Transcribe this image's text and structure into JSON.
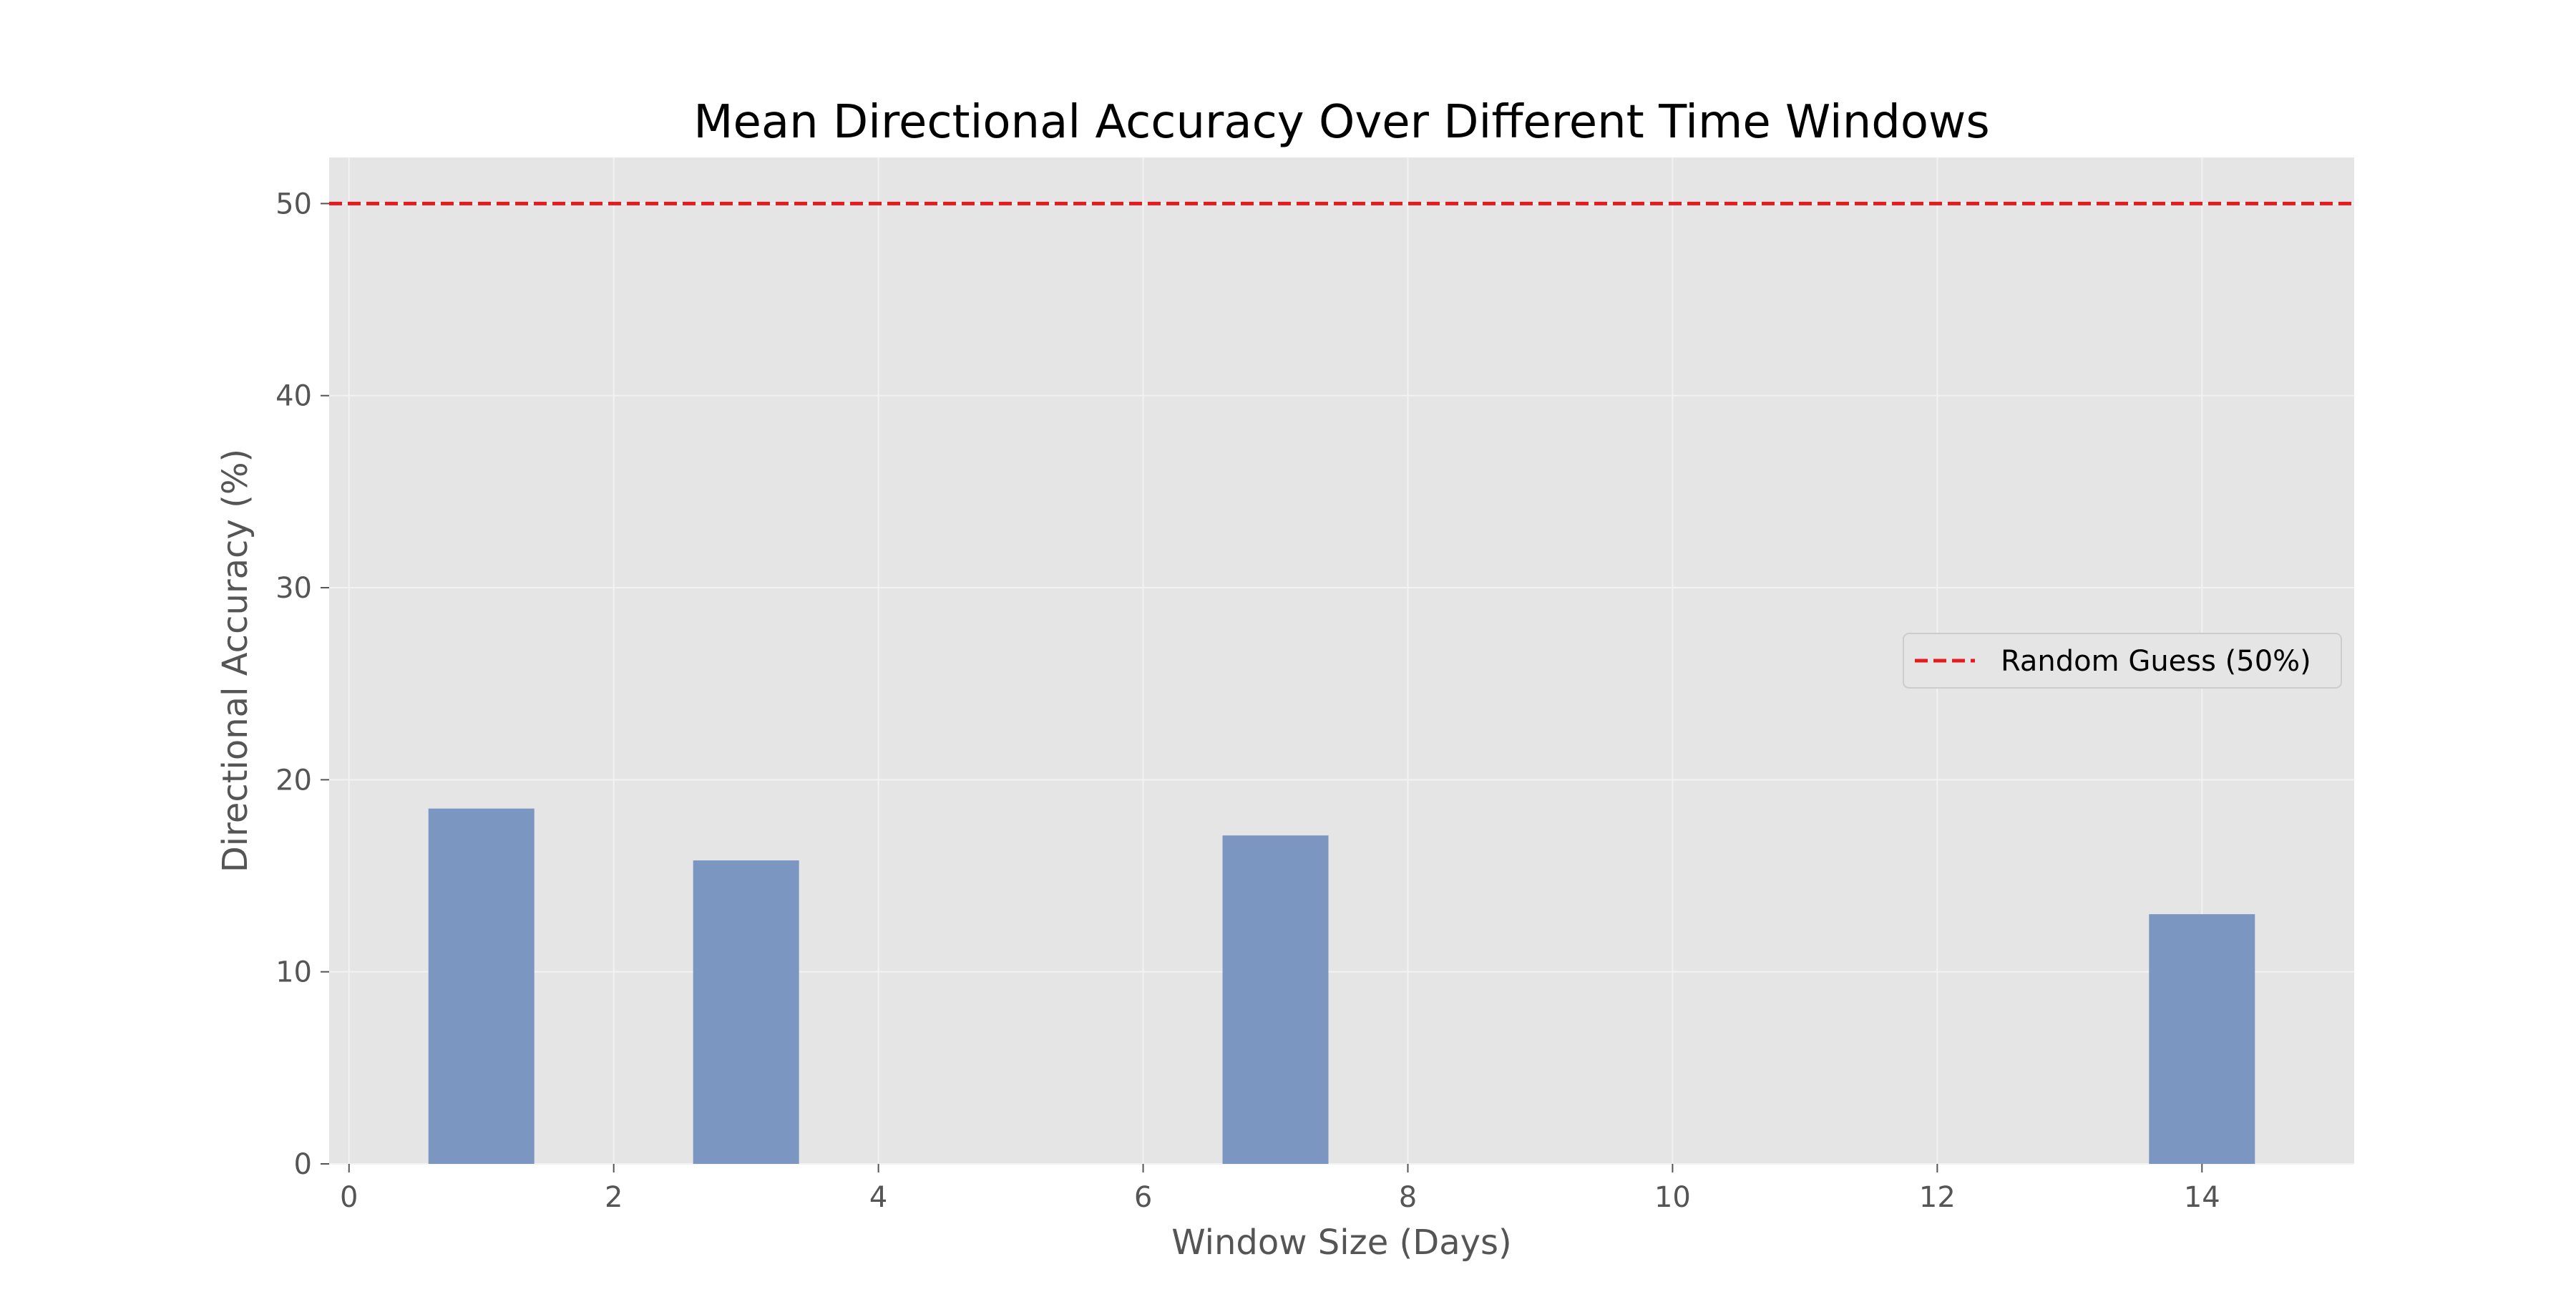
{
  "chart_data": {
    "type": "bar",
    "title": "Mean Directional Accuracy Over Different Time Windows",
    "xlabel": "Window Size (Days)",
    "ylabel": "Directional Accuracy (%)",
    "x": [
      1,
      3,
      7,
      14
    ],
    "values": [
      18.5,
      15.8,
      17.1,
      13.0
    ],
    "bar_width_days": 0.8,
    "xlim": [
      -0.15,
      15.15
    ],
    "ylim": [
      0,
      52.4
    ],
    "xticks": [
      0,
      2,
      4,
      6,
      8,
      10,
      12,
      14
    ],
    "yticks": [
      0,
      10,
      20,
      30,
      40,
      50
    ],
    "grid": true,
    "reference_line": {
      "y": 50,
      "label": "Random Guess (50%)",
      "style": "dashed",
      "color": "#e41a1c"
    },
    "legend_placement": "center-right",
    "colors": {
      "bar": "#7b96c0",
      "plot_background": "#e5e5e5",
      "grid": "#f2f2f2",
      "reference": "#e41a1c"
    }
  }
}
